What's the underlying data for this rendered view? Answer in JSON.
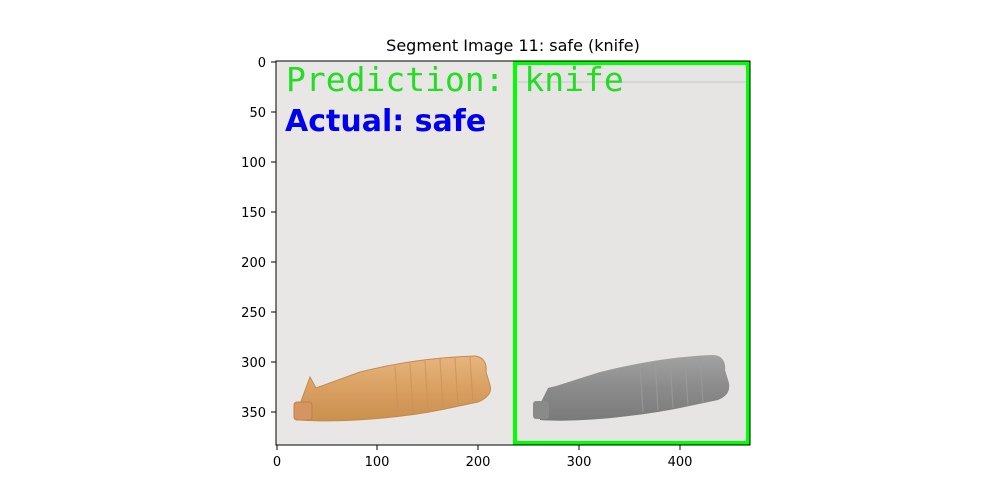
{
  "figure": {
    "title": "Segment Image 11: safe (knife)",
    "x_ticks": [
      "0",
      "100",
      "200",
      "300",
      "400"
    ],
    "y_ticks": [
      "0",
      "50",
      "100",
      "150",
      "200",
      "250",
      "300",
      "350"
    ],
    "image_width": 470,
    "image_height": 382
  },
  "overlay": {
    "prediction_text": "Prediction: knife",
    "actual_text": "Actual: safe",
    "prediction_color": "#22dd22",
    "actual_color": "#0000ee",
    "box_color": "#00ff00"
  },
  "colors": {
    "background_image": "#e6e5e4",
    "bottle_color": "#dba56a",
    "bottle_gray": "#8e8e8e"
  }
}
